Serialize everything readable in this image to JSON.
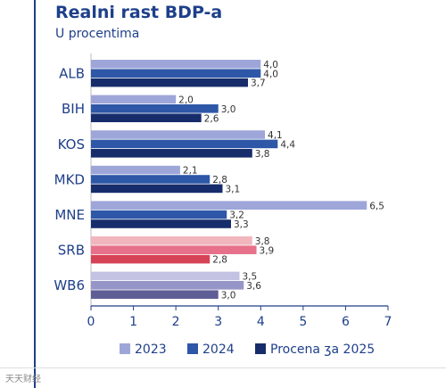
{
  "title": "Realni rast BDP-a",
  "subtitle": "U procentima",
  "watermark": "天天财经",
  "colors": {
    "accent": "#1e3f8a",
    "series": [
      "#9ea6d9",
      "#2e57a7",
      "#172d6b"
    ],
    "srb_series": [
      "#f1b6bd",
      "#e7718a",
      "#d64256"
    ],
    "wb6_series": [
      "#c4c2e3",
      "#9595c8",
      "#5e5d96"
    ]
  },
  "chart_data": {
    "type": "bar",
    "orientation": "horizontal",
    "title": "Realni rast BDP-a",
    "subtitle": "U procentima",
    "categories": [
      "ALB",
      "BIH",
      "KOS",
      "MKD",
      "MNE",
      "SRB",
      "WB6"
    ],
    "series": [
      {
        "name": "2023",
        "values": [
          4.0,
          2.0,
          4.1,
          2.1,
          6.5,
          3.8,
          3.5
        ],
        "labels": [
          "4,0",
          "2,0",
          "4,1",
          "2,1",
          "6,5",
          "3,8",
          "3,5"
        ]
      },
      {
        "name": "2024",
        "values": [
          4.0,
          3.0,
          4.4,
          2.8,
          3.2,
          3.9,
          3.6
        ],
        "labels": [
          "4,0",
          "3,0",
          "4,4",
          "2,8",
          "3,2",
          "3,9",
          "3,6"
        ]
      },
      {
        "name": "Procena ʒa 2025",
        "values": [
          3.7,
          2.6,
          3.8,
          3.1,
          3.3,
          2.8,
          3.0
        ],
        "labels": [
          "3,7",
          "2,6",
          "3,8",
          "3,1",
          "3,3",
          "2,8",
          "3,0"
        ]
      }
    ],
    "xlim": [
      0,
      7
    ],
    "xticks": [
      "0",
      "1",
      "2",
      "3",
      "4",
      "5",
      "6",
      "7"
    ],
    "grid": false,
    "legend_position": "bottom"
  }
}
